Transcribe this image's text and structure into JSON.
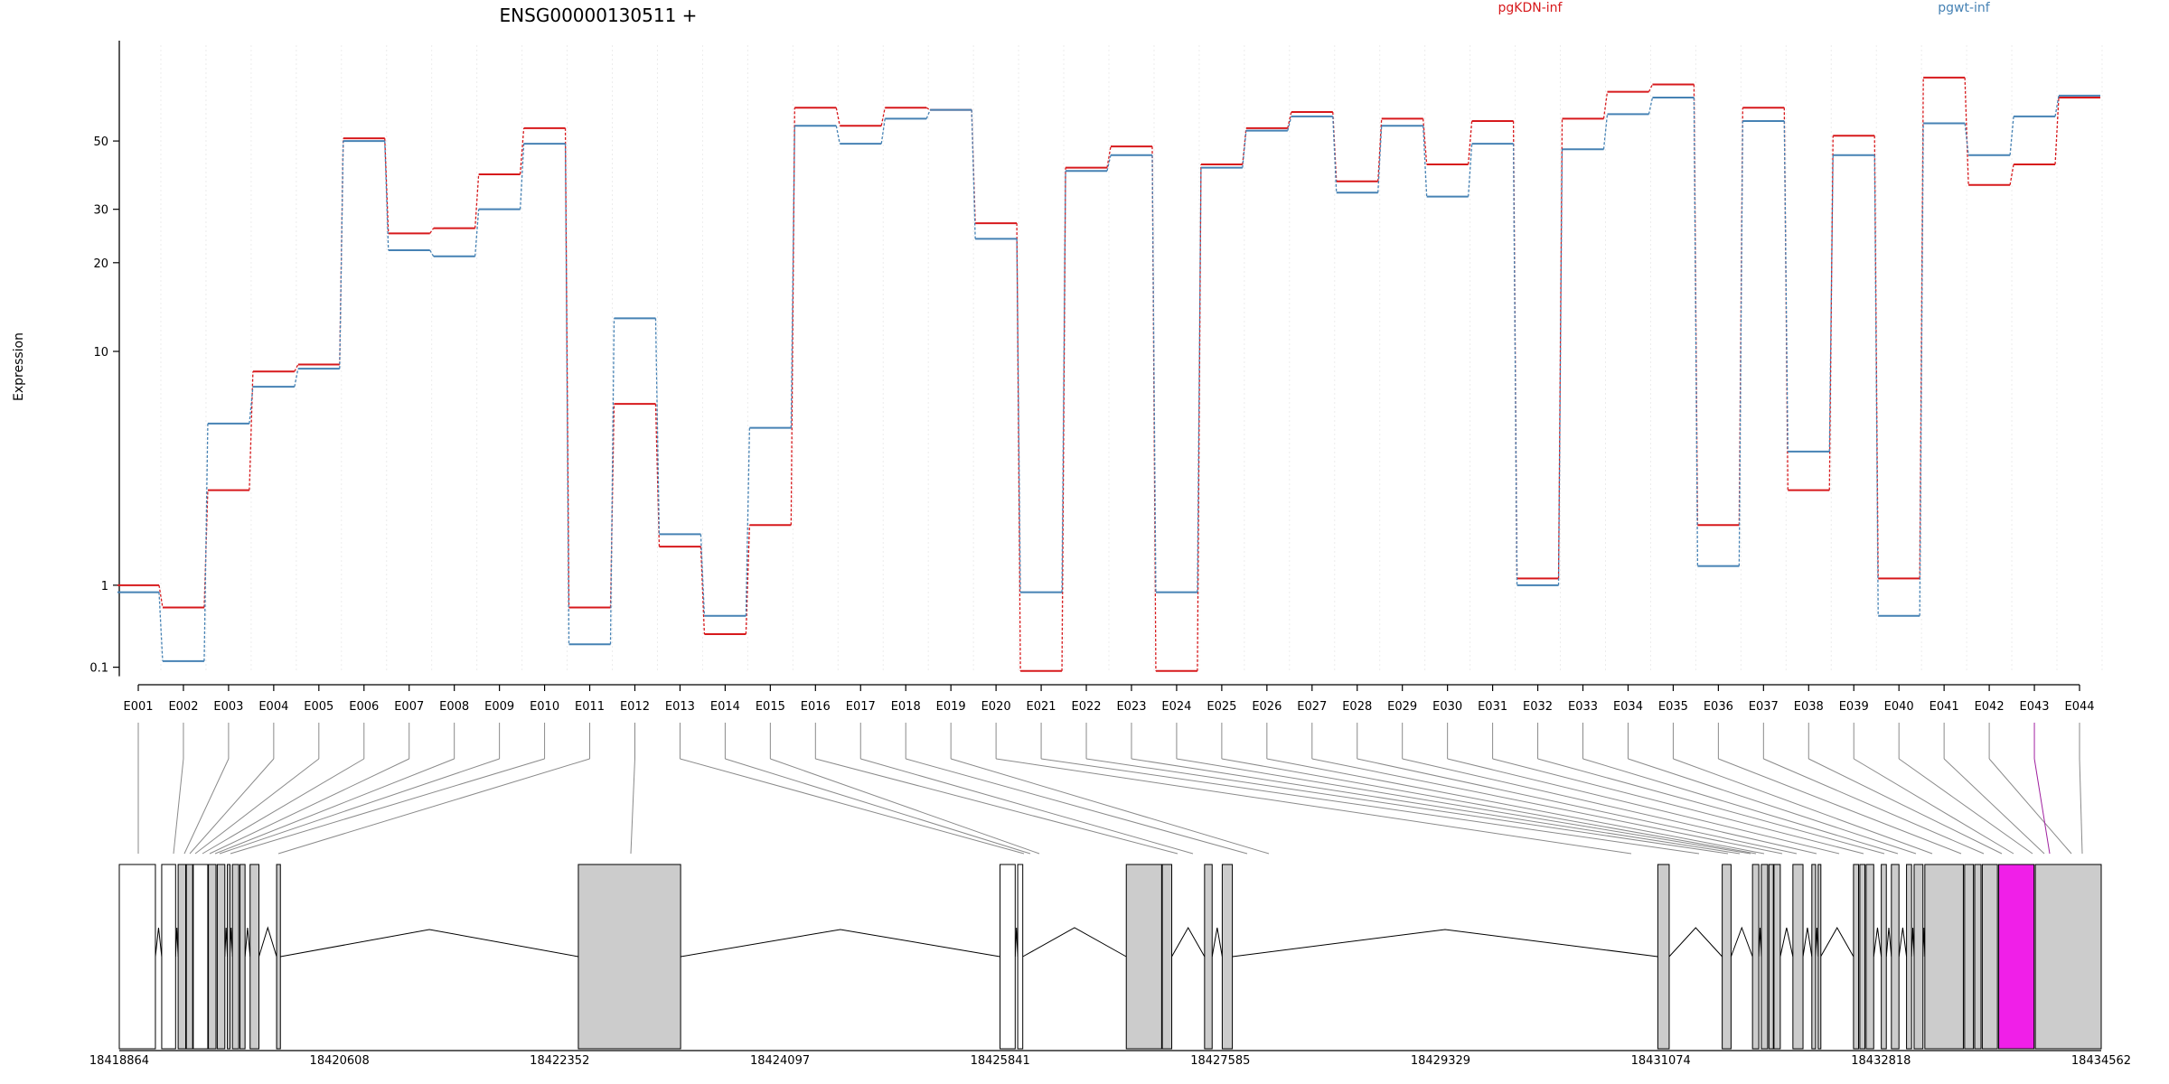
{
  "chart_data": {
    "type": "line",
    "title": "ENSG00000130511 +",
    "ylabel": "Expression",
    "xlabel": "",
    "y_scale": "log-like (log(1+x))",
    "ylim": [
      0.09,
      105
    ],
    "y_ticks": [
      0.1,
      1,
      10,
      20,
      30,
      50
    ],
    "y_tick_labels": [
      "0.1",
      "1",
      "10",
      "20",
      "30",
      "50"
    ],
    "grid": "vertical dotted lines at exon boundaries",
    "legend_position": "top-right",
    "categories": [
      "E001",
      "E002",
      "E003",
      "E004",
      "E005",
      "E006",
      "E007",
      "E008",
      "E009",
      "E010",
      "E011",
      "E012",
      "E013",
      "E014",
      "E015",
      "E016",
      "E017",
      "E018",
      "E019",
      "E020",
      "E021",
      "E022",
      "E023",
      "E024",
      "E025",
      "E026",
      "E027",
      "E028",
      "E029",
      "E030",
      "E031",
      "E032",
      "E033",
      "E034",
      "E035",
      "E036",
      "E037",
      "E038",
      "E039",
      "E040",
      "E041",
      "E042",
      "E043",
      "E044"
    ],
    "series": [
      {
        "name": "pgKDN-inf",
        "color": "#d7191c",
        "values": [
          1.0,
          0.7,
          3.0,
          8.5,
          9.0,
          51,
          25,
          26,
          39,
          55,
          0.7,
          6.5,
          1.65,
          0.4,
          2.1,
          64,
          56,
          64,
          63,
          27,
          0.07,
          41,
          48,
          0.07,
          42,
          55,
          62,
          37,
          59,
          42,
          58,
          1.1,
          59,
          72,
          76,
          2.1,
          64,
          3.0,
          52,
          1.1,
          80,
          36,
          42,
          69
        ]
      },
      {
        "name": "pgwt-inf",
        "color": "#4682b4",
        "values": [
          0.9,
          0.15,
          5.5,
          7.5,
          8.7,
          50,
          22,
          21,
          30,
          49,
          0.3,
          13,
          1.9,
          0.6,
          5.3,
          56,
          49,
          59,
          63,
          24,
          0.9,
          40,
          45,
          0.9,
          41,
          54,
          60,
          34,
          56,
          33,
          49,
          1.0,
          47,
          61,
          69,
          1.3,
          58,
          4.3,
          45,
          0.6,
          57,
          45,
          60,
          70
        ]
      }
    ]
  },
  "gene_model": {
    "coordinate_ticks": [
      "18418864",
      "18420608",
      "18422352",
      "18424097",
      "18425841",
      "18427585",
      "18429329",
      "18431074",
      "18432818",
      "18434562"
    ],
    "highlighted_exon": "E043",
    "highlight_color": "#f01fe8",
    "exon_fill": "#cccccc"
  }
}
